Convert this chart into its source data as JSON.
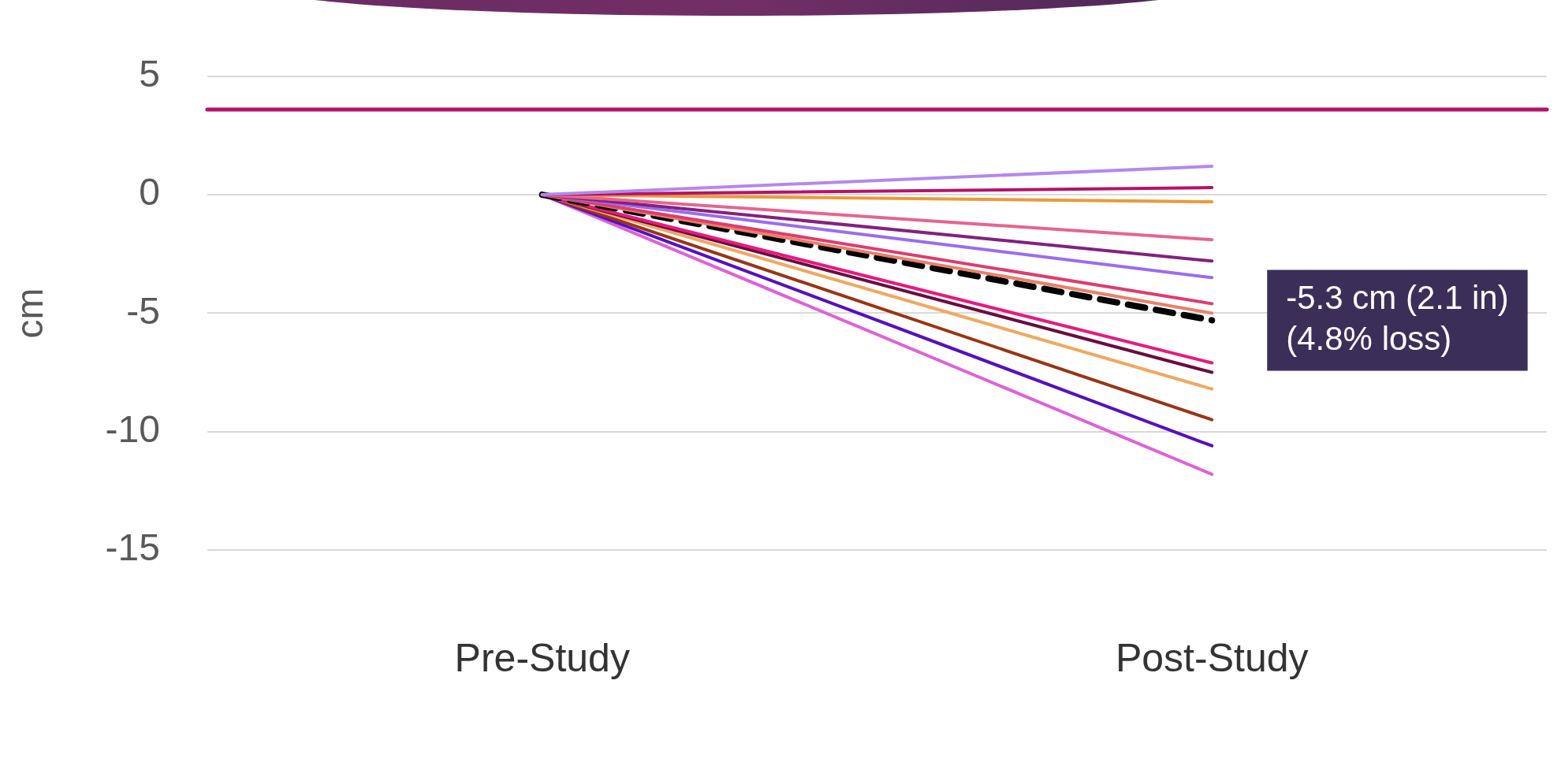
{
  "chart_data": {
    "type": "line",
    "ylabel": "cm",
    "categories": [
      "Pre-Study",
      "Post-Study"
    ],
    "ylim": [
      -15,
      5
    ],
    "yticks": [
      -15,
      -10,
      -5,
      0,
      5
    ],
    "grid": "y",
    "marker": "none",
    "line_style": "solid",
    "series": [
      {
        "color": "#b388f0",
        "values": [
          0,
          1.2
        ]
      },
      {
        "color": "#b5126b",
        "values": [
          0,
          0.3
        ]
      },
      {
        "color": "#ea9a3c",
        "values": [
          0,
          -0.3
        ]
      },
      {
        "color": "#e8638f",
        "values": [
          0,
          -1.9
        ]
      },
      {
        "color": "#84207f",
        "values": [
          0,
          -2.8
        ]
      },
      {
        "color": "#9b6cf0",
        "values": [
          0,
          -3.5
        ]
      },
      {
        "color": "#e03b6e",
        "values": [
          0,
          -4.6
        ]
      },
      {
        "color": "#ec7f68",
        "values": [
          0,
          -5.0
        ]
      },
      {
        "color": "#000000",
        "values": [
          0,
          -5.3
        ],
        "line_style": "dashed"
      },
      {
        "color": "#e8197f",
        "values": [
          0,
          -7.1
        ]
      },
      {
        "color": "#6b0c40",
        "values": [
          0,
          -7.5
        ]
      },
      {
        "color": "#f0a860",
        "values": [
          0,
          -8.2
        ]
      },
      {
        "color": "#9a3414",
        "values": [
          0,
          -9.5
        ]
      },
      {
        "color": "#5510c0",
        "values": [
          0,
          -10.6
        ]
      },
      {
        "color": "#e060d8",
        "values": [
          0,
          -11.8
        ]
      }
    ],
    "ref_lines": [
      {
        "axis": "y",
        "value": 3.6,
        "color": "#b5126b"
      }
    ],
    "annotations": [
      {
        "text": "-5.3 cm (2.1 in) (4.8% loss)",
        "x": "Post-Study",
        "y": -5.3
      }
    ]
  }
}
